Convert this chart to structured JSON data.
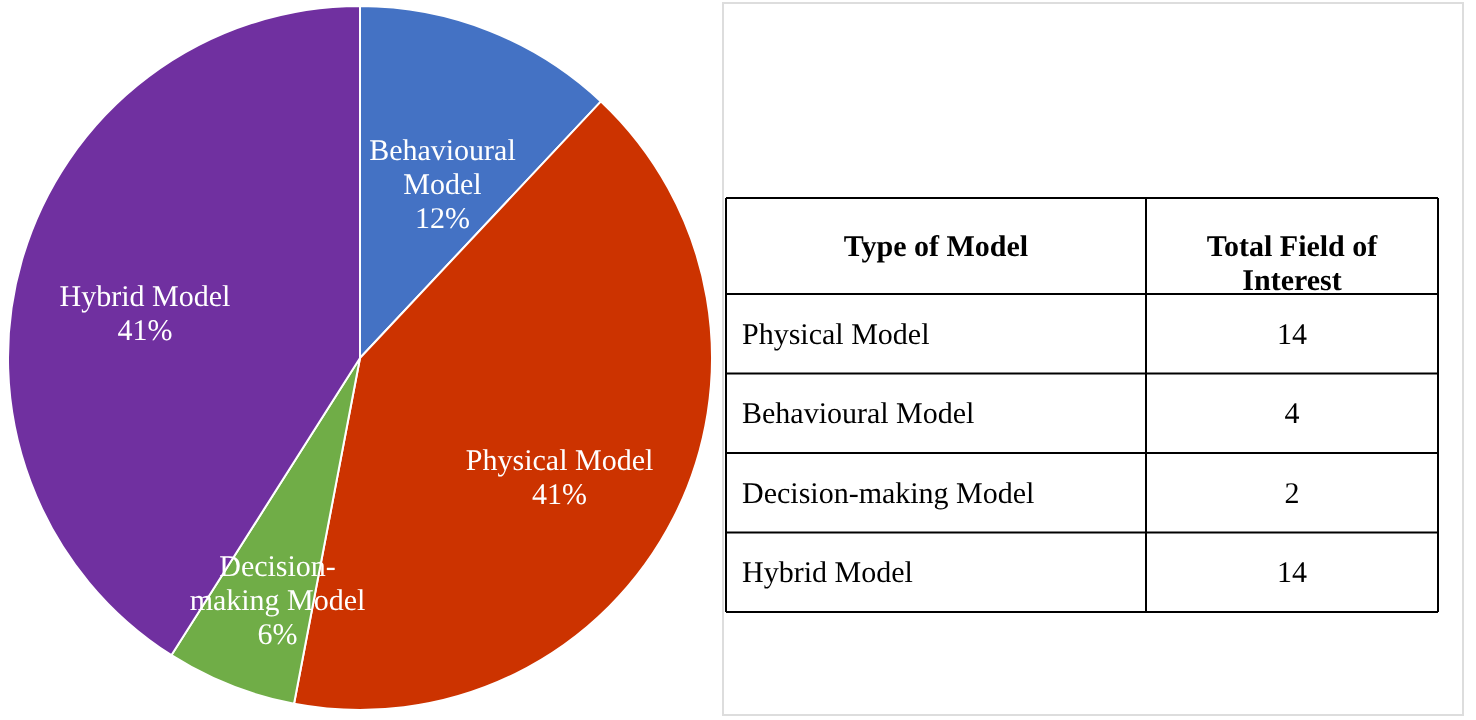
{
  "chart_data": {
    "type": "pie",
    "categories": [
      "Behavioural Model",
      "Physical Model",
      "Decision-making Model",
      "Hybrid Model"
    ],
    "values": [
      12,
      41,
      6,
      41
    ],
    "value_labels": [
      "12%",
      "41%",
      "6%",
      "41%"
    ],
    "colors": [
      "#4472c4",
      "#cc3300",
      "#70ad47",
      "#7030a0"
    ],
    "annotations": [
      "Type of Model",
      "Total Field of\nInterest",
      "Physical Model",
      "14",
      "Behavioural Model",
      "4",
      "Decision-making Model",
      "2",
      "Hybrid Model",
      "14"
    ],
    "legend": false
  }
}
